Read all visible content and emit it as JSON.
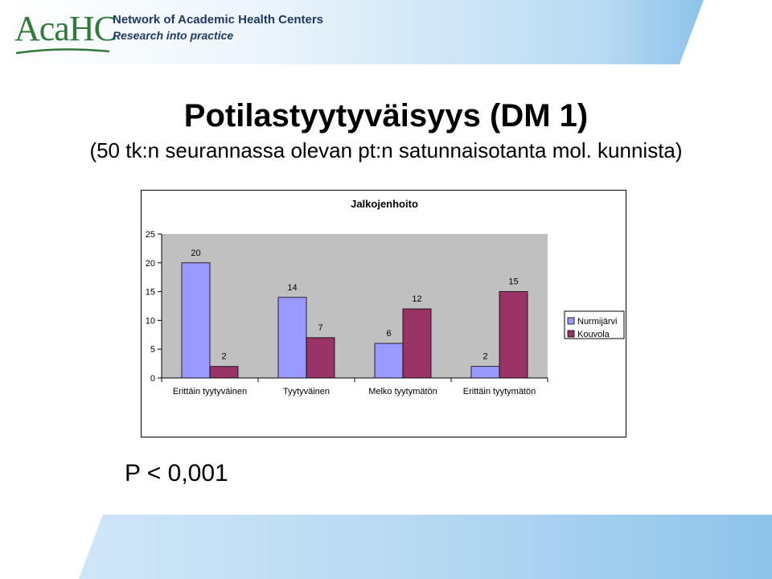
{
  "header": {
    "logo_mark": "AcaHC",
    "org_name": "Network of Academic Health Centers",
    "tagline": "Research into practice"
  },
  "slide": {
    "title": "Potilastyytyväisyys (DM 1)",
    "subtitle": "(50 tk:n seurannassa olevan pt:n satunnaisotanta mol. kunnista)",
    "p_value": "P < 0,001"
  },
  "colors": {
    "banner_light": "#d8eaf7",
    "banner_dark": "#7fb8e6",
    "plot_area": "#c0c0c0",
    "series_1": "#9999ff",
    "series_2": "#993366"
  },
  "chart_data": {
    "type": "bar",
    "title": "Jalkojenhoito",
    "categories": [
      "Erittäin tyytyväinen",
      "Tyytyväinen",
      "Melko tyytymätön",
      "Erittäin tyytymätön"
    ],
    "series": [
      {
        "name": "Nurmijärvi",
        "values": [
          20,
          14,
          6,
          2
        ],
        "color": "#9999ff"
      },
      {
        "name": "Kouvola",
        "values": [
          2,
          7,
          12,
          15
        ],
        "color": "#993366"
      }
    ],
    "ylim": [
      0,
      25
    ],
    "yticks": [
      0,
      5,
      10,
      15,
      20,
      25
    ],
    "data_labels": true,
    "grid": false,
    "legend": "right"
  }
}
